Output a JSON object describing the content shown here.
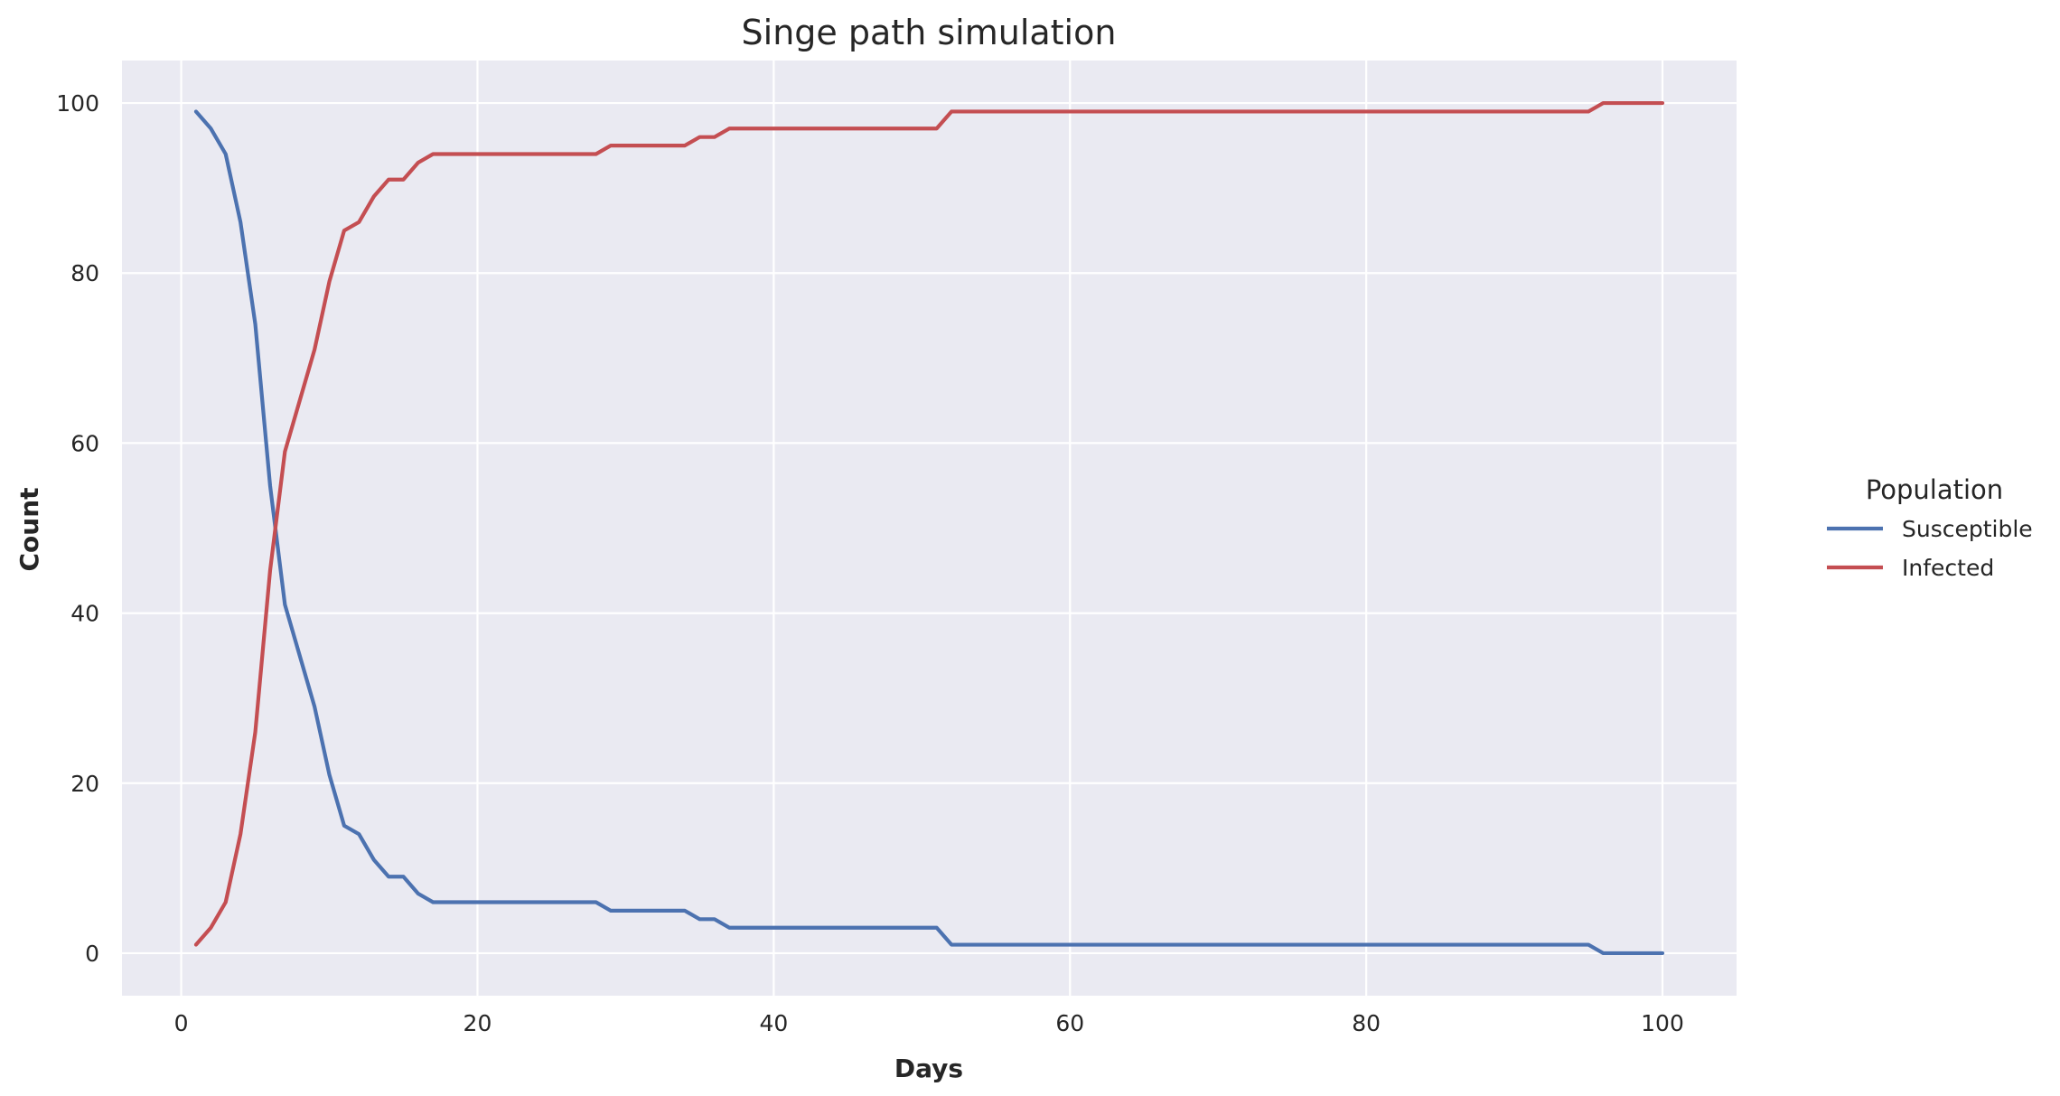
{
  "chart_data": {
    "type": "line",
    "title": "Singe path simulation",
    "xlabel": "Days",
    "ylabel": "Count",
    "xlim": [
      -4,
      105
    ],
    "ylim": [
      -5,
      105
    ],
    "x_ticks": [
      0,
      20,
      40,
      60,
      80,
      100
    ],
    "y_ticks": [
      0,
      20,
      40,
      60,
      80,
      100
    ],
    "grid": true,
    "background": "#eaeaf2",
    "legend": {
      "title": "Population",
      "placement": "right"
    },
    "x": [
      1,
      2,
      3,
      4,
      5,
      6,
      7,
      8,
      9,
      10,
      11,
      12,
      13,
      14,
      15,
      16,
      17,
      18,
      19,
      20,
      21,
      22,
      23,
      24,
      25,
      26,
      27,
      28,
      29,
      30,
      31,
      32,
      33,
      34,
      35,
      36,
      37,
      38,
      39,
      40,
      41,
      42,
      43,
      44,
      45,
      46,
      47,
      48,
      49,
      50,
      51,
      52,
      53,
      54,
      55,
      56,
      57,
      58,
      59,
      60,
      61,
      62,
      63,
      64,
      65,
      66,
      67,
      68,
      69,
      70,
      71,
      72,
      73,
      74,
      75,
      76,
      77,
      78,
      79,
      80,
      81,
      82,
      83,
      84,
      85,
      86,
      87,
      88,
      89,
      90,
      91,
      92,
      93,
      94,
      95,
      96,
      97,
      98,
      99,
      100
    ],
    "series": [
      {
        "name": "Susceptible",
        "color": "#4c72b0",
        "values": [
          99,
          97,
          94,
          86,
          74,
          55,
          41,
          35,
          29,
          21,
          15,
          14,
          11,
          9,
          9,
          7,
          6,
          6,
          6,
          6,
          6,
          6,
          6,
          6,
          6,
          6,
          6,
          6,
          5,
          5,
          5,
          5,
          5,
          5,
          4,
          4,
          3,
          3,
          3,
          3,
          3,
          3,
          3,
          3,
          3,
          3,
          3,
          3,
          3,
          3,
          3,
          1,
          1,
          1,
          1,
          1,
          1,
          1,
          1,
          1,
          1,
          1,
          1,
          1,
          1,
          1,
          1,
          1,
          1,
          1,
          1,
          1,
          1,
          1,
          1,
          1,
          1,
          1,
          1,
          1,
          1,
          1,
          1,
          1,
          1,
          1,
          1,
          1,
          1,
          1,
          1,
          1,
          1,
          1,
          1,
          0,
          0,
          0,
          0,
          0
        ]
      },
      {
        "name": "Infected",
        "color": "#c44e52",
        "values": [
          1,
          3,
          6,
          14,
          26,
          45,
          59,
          65,
          71,
          79,
          85,
          86,
          89,
          91,
          91,
          93,
          94,
          94,
          94,
          94,
          94,
          94,
          94,
          94,
          94,
          94,
          94,
          94,
          95,
          95,
          95,
          95,
          95,
          95,
          96,
          96,
          97,
          97,
          97,
          97,
          97,
          97,
          97,
          97,
          97,
          97,
          97,
          97,
          97,
          97,
          97,
          99,
          99,
          99,
          99,
          99,
          99,
          99,
          99,
          99,
          99,
          99,
          99,
          99,
          99,
          99,
          99,
          99,
          99,
          99,
          99,
          99,
          99,
          99,
          99,
          99,
          99,
          99,
          99,
          99,
          99,
          99,
          99,
          99,
          99,
          99,
          99,
          99,
          99,
          99,
          99,
          99,
          99,
          99,
          99,
          100,
          100,
          100,
          100,
          100
        ]
      }
    ]
  }
}
